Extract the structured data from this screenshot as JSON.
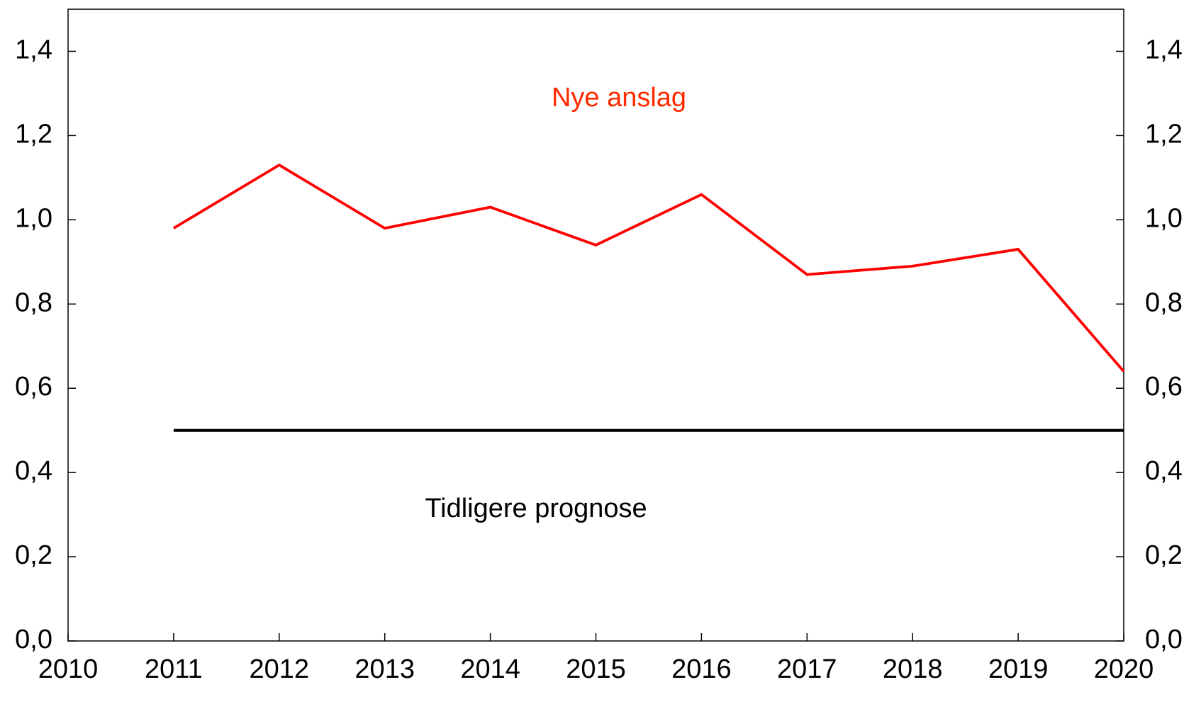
{
  "chart_data": {
    "type": "line",
    "annotations": [
      "Nye anslag",
      "Tidligere prognose"
    ],
    "x": [
      2011,
      2012,
      2013,
      2014,
      2015,
      2016,
      2017,
      2018,
      2019,
      2020
    ],
    "series": [
      {
        "name": "Nye anslag",
        "color": "#ff0000",
        "values": [
          0.98,
          1.13,
          0.98,
          1.03,
          0.94,
          1.06,
          0.87,
          0.89,
          0.93,
          0.64
        ]
      },
      {
        "name": "Tidligere prognose",
        "color": "#000000",
        "values": [
          0.5,
          0.5,
          0.5,
          0.5,
          0.5,
          0.5,
          0.5,
          0.5,
          0.5,
          0.5
        ]
      }
    ],
    "xlim": [
      2010,
      2020
    ],
    "xticks": [
      2010,
      2011,
      2012,
      2013,
      2014,
      2015,
      2016,
      2017,
      2018,
      2019,
      2020
    ],
    "ylim": [
      0,
      1.5
    ],
    "yticks": [
      {
        "value": 0,
        "label": "0,0"
      },
      {
        "value": 0.2,
        "label": "0,2"
      },
      {
        "value": 0.4,
        "label": "0,4"
      },
      {
        "value": 0.6,
        "label": "0,6"
      },
      {
        "value": 0.8,
        "label": "0,8"
      },
      {
        "value": 1.0,
        "label": "1,0"
      },
      {
        "value": 1.2,
        "label": "1,2"
      },
      {
        "value": 1.4,
        "label": "1,4"
      }
    ],
    "grid": false
  }
}
